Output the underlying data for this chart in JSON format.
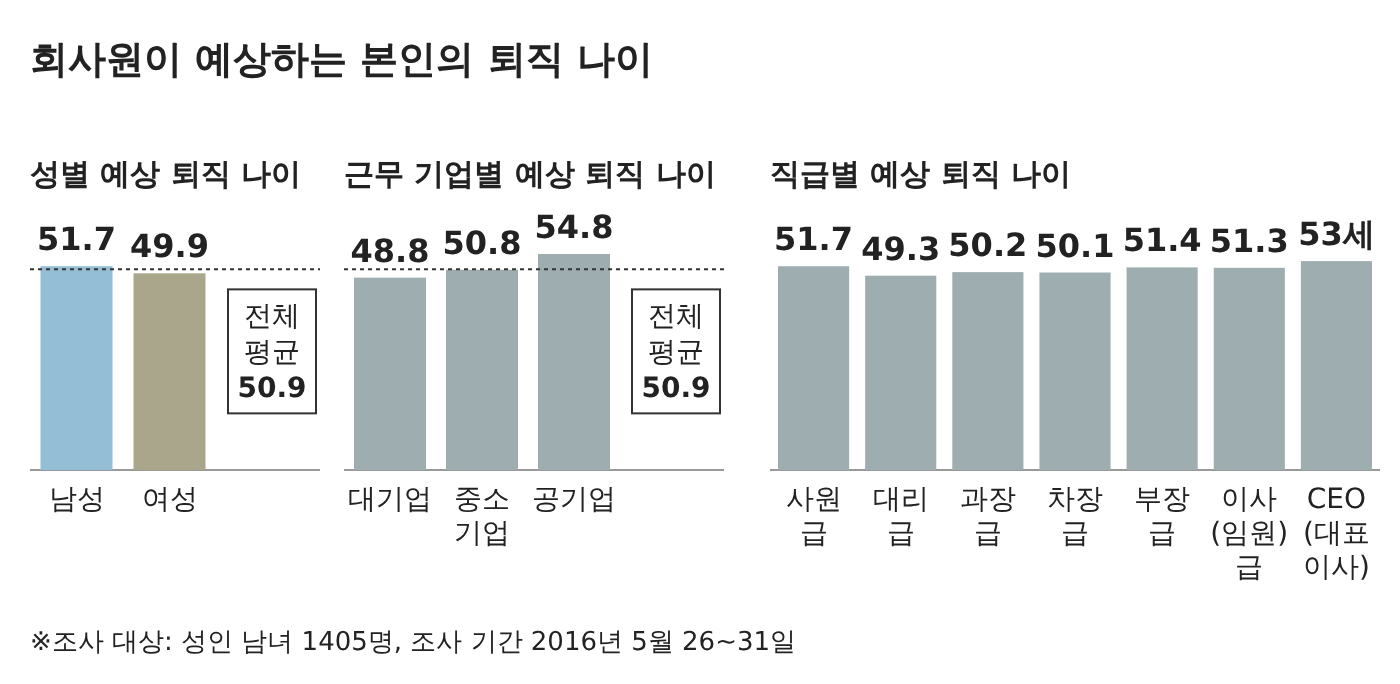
{
  "chart_data": [
    {
      "type": "other",
      "title": "회사원이 예상하는 본인의 퇴직 나이",
      "annotations": [
        "※조사 대상: 성인 남녀 1405명, 조사 기간 2016년 5월 26~31일"
      ]
    },
    {
      "type": "bar",
      "title": "성별 예상 퇴직 나이",
      "categories": [
        "남성",
        "여성"
      ],
      "values": [
        51.7,
        49.9
      ],
      "colors": [
        "#94bdd6",
        "#aaa68c"
      ],
      "data_labels": true,
      "ref_lines": [
        {
          "axis": "y",
          "value": 50.9,
          "label": "전체\n평균\n50.9",
          "line_style": "dotted"
        }
      ]
    },
    {
      "type": "bar",
      "title": "근무 기업별 예상 퇴직 나이",
      "categories": [
        "대기업",
        "중소\n기업",
        "공기업"
      ],
      "values": [
        48.8,
        50.8,
        54.8
      ],
      "color": "#9eaeb0",
      "data_labels": true,
      "ref_lines": [
        {
          "axis": "y",
          "value": 50.9,
          "label": "전체\n평균\n50.9",
          "line_style": "dotted"
        }
      ]
    },
    {
      "type": "bar",
      "title": "직급별 예상 퇴직 나이",
      "categories": [
        "사원\n급",
        "대리\n급",
        "과장\n급",
        "차장\n급",
        "부장\n급",
        "이사\n(임원)\n급",
        "CEO\n(대표\n이사)"
      ],
      "values": [
        51.7,
        49.3,
        50.2,
        50.1,
        51.4,
        51.3,
        53
      ],
      "value_labels": [
        "51.7",
        "49.3",
        "50.2",
        "50.1",
        "51.4",
        "51.3",
        "53세"
      ],
      "color": "#9eaeb0"
    }
  ]
}
